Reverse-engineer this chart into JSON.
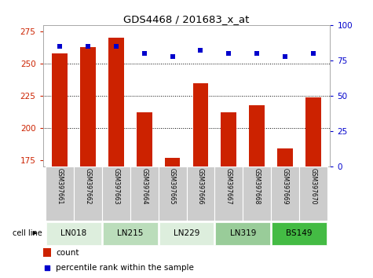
{
  "title": "GDS4468 / 201683_x_at",
  "samples": [
    "GSM397661",
    "GSM397662",
    "GSM397663",
    "GSM397664",
    "GSM397665",
    "GSM397666",
    "GSM397667",
    "GSM397668",
    "GSM397669",
    "GSM397670"
  ],
  "counts": [
    258,
    263,
    270,
    212,
    177,
    235,
    212,
    218,
    184,
    224
  ],
  "percentile_ranks": [
    85,
    85,
    85,
    80,
    78,
    82,
    80,
    80,
    78,
    80
  ],
  "cell_lines": [
    {
      "label": "LN018",
      "start": 0,
      "end": 2,
      "color": "#ddeedd"
    },
    {
      "label": "LN215",
      "start": 2,
      "end": 4,
      "color": "#bbddbb"
    },
    {
      "label": "LN229",
      "start": 4,
      "end": 6,
      "color": "#ddeedd"
    },
    {
      "label": "LN319",
      "start": 6,
      "end": 8,
      "color": "#99cc99"
    },
    {
      "label": "BS149",
      "start": 8,
      "end": 10,
      "color": "#44bb44"
    }
  ],
  "ylim": [
    170,
    280
  ],
  "yticks": [
    175,
    200,
    225,
    250,
    275
  ],
  "y2lim": [
    0,
    100
  ],
  "y2ticks": [
    0,
    25,
    50,
    75,
    100
  ],
  "bar_color": "#cc2200",
  "dot_color": "#0000cc",
  "bar_width": 0.55,
  "tick_label_color_left": "#cc2200",
  "tick_label_color_right": "#0000cc",
  "grid_color": "#000000",
  "grid_yticks": [
    200,
    225,
    250
  ],
  "sample_box_color": "#cccccc"
}
